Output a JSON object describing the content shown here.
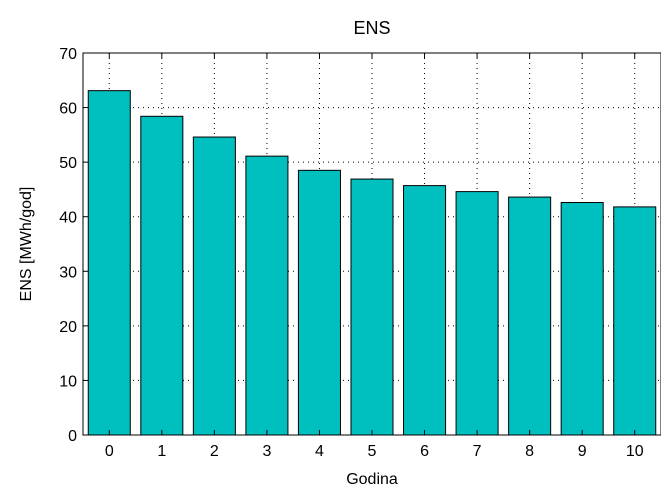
{
  "chart_data": {
    "type": "bar",
    "title": "ENS",
    "xlabel": "Godina",
    "ylabel": "ENS [MWh/god]",
    "categories": [
      "0",
      "1",
      "2",
      "3",
      "4",
      "5",
      "6",
      "7",
      "8",
      "9",
      "10"
    ],
    "values": [
      63.1,
      58.4,
      54.6,
      51.1,
      48.5,
      46.9,
      45.7,
      44.6,
      43.6,
      42.6,
      41.8
    ],
    "yticks": [
      "0",
      "10",
      "20",
      "30",
      "40",
      "50",
      "60",
      "70"
    ],
    "ylim": [
      0,
      70
    ],
    "grid": true,
    "grid_style": "dotted",
    "bar_color": "#00BFBF",
    "bar_edge_color": "#000000"
  }
}
